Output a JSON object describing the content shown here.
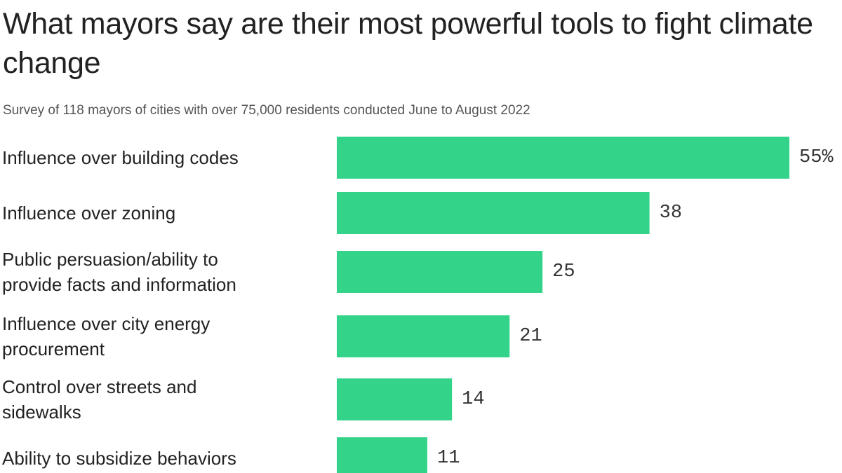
{
  "chart_data": {
    "type": "bar",
    "orientation": "horizontal",
    "title": "What mayors say are their most powerful tools to fight climate change",
    "subtitle": "Survey of 118 mayors of cities with over 75,000 residents conducted June to August 2022",
    "categories": [
      [
        "Influence over building codes"
      ],
      [
        "Influence over zoning"
      ],
      [
        "Public persuasion/ability to",
        "provide facts and information"
      ],
      [
        "Influence over city energy",
        "procurement"
      ],
      [
        "Control over streets and",
        "sidewalks"
      ],
      [
        "Ability to subsidize behaviors"
      ]
    ],
    "values": [
      55,
      38,
      25,
      21,
      14,
      11
    ],
    "value_labels": [
      "55%",
      "38",
      "25",
      "21",
      "14",
      "11"
    ],
    "unit": "%",
    "xlim": [
      0,
      55
    ],
    "grid": false,
    "bar_color": "#33d38a"
  }
}
